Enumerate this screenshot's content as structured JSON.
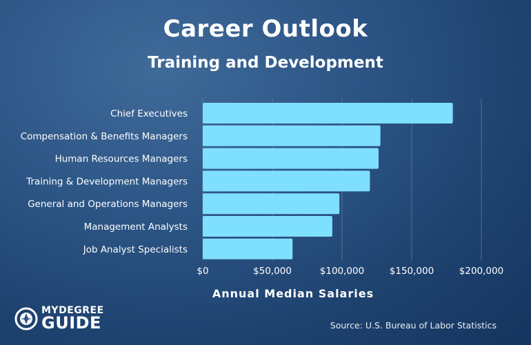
{
  "header": {
    "title": "Career Outlook",
    "subtitle": "Training and Development"
  },
  "footer": {
    "logo_top": "MYDEGREE",
    "logo_bottom": "GUIDE",
    "source": "Source: U.S. Bureau of Labor Statistics"
  },
  "colors": {
    "bar": "#7fdfff",
    "gridline": "#6f8db0",
    "background": "#2b5484"
  },
  "chart_data": {
    "type": "bar",
    "orientation": "horizontal",
    "categories": [
      "Chief Executives",
      "Compensation & Benefits Managers",
      "Human Resources Managers",
      "Training & Development Managers",
      "General and Operations Managers",
      "Management Analysts",
      "Job Analyst Specialists"
    ],
    "values": [
      179520,
      127530,
      126230,
      120000,
      98100,
      93000,
      64480
    ],
    "xlabel": "Annual Median Salaries",
    "ylabel": "",
    "xlim": [
      0,
      200000
    ],
    "xticks": [
      0,
      50000,
      100000,
      150000,
      200000
    ],
    "xtick_labels": [
      "$0",
      "$50,000",
      "$100,000",
      "$150,000",
      "$200,000"
    ],
    "grid": "vertical"
  }
}
